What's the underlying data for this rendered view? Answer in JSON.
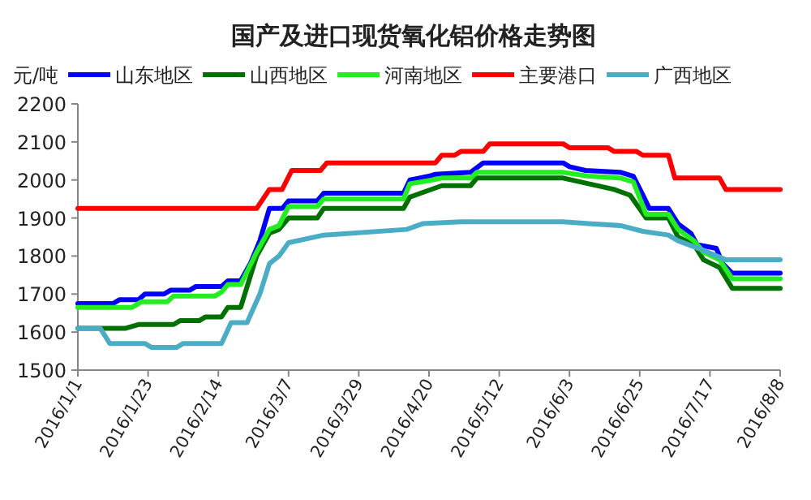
{
  "chart_data": {
    "type": "line",
    "title": "国产及进口现货氧化铝价格走势图",
    "ylabel": "元/吨",
    "legend": "top",
    "grid": false,
    "marker": "none",
    "line_style": "solid",
    "ylim": [
      1500,
      2200
    ],
    "yticks": [
      1500,
      1600,
      1700,
      1800,
      1900,
      2000,
      2100,
      2200
    ],
    "xlim": [
      "2016-01-01",
      "2016-08-08"
    ],
    "xticks": [
      {
        "value": "2016-01-01",
        "label": "2016/1/1"
      },
      {
        "value": "2016-01-23",
        "label": "2016/1/23"
      },
      {
        "value": "2016-02-14",
        "label": "2016/2/14"
      },
      {
        "value": "2016-03-07",
        "label": "2016/3/7"
      },
      {
        "value": "2016-03-29",
        "label": "2016/3/29"
      },
      {
        "value": "2016-04-20",
        "label": "2016/4/20"
      },
      {
        "value": "2016-05-12",
        "label": "2016/5/12"
      },
      {
        "value": "2016-06-03",
        "label": "2016/6/3"
      },
      {
        "value": "2016-06-25",
        "label": "2016/6/25"
      },
      {
        "value": "2016-07-17",
        "label": "2016/7/17"
      },
      {
        "value": "2016-08-08",
        "label": "2016/8/8"
      }
    ],
    "series": [
      {
        "name": "山东地区",
        "color": "#0000ff",
        "x": [
          "2016-01-01",
          "2016-01-12",
          "2016-01-14",
          "2016-01-20",
          "2016-01-22",
          "2016-01-28",
          "2016-01-30",
          "2016-02-05",
          "2016-02-07",
          "2016-02-15",
          "2016-02-17",
          "2016-02-21",
          "2016-02-24",
          "2016-02-27",
          "2016-03-01",
          "2016-03-05",
          "2016-03-07",
          "2016-03-16",
          "2016-03-18",
          "2016-04-12",
          "2016-04-14",
          "2016-04-20",
          "2016-04-22",
          "2016-05-03",
          "2016-05-07",
          "2016-06-01",
          "2016-06-03",
          "2016-06-08",
          "2016-06-19",
          "2016-06-23",
          "2016-06-26",
          "2016-06-28",
          "2016-07-04",
          "2016-07-07",
          "2016-07-11",
          "2016-07-13",
          "2016-07-19",
          "2016-07-21",
          "2016-07-24",
          "2016-08-08"
        ],
        "values": [
          1675,
          1675,
          1685,
          1685,
          1700,
          1700,
          1710,
          1710,
          1720,
          1720,
          1735,
          1735,
          1780,
          1840,
          1925,
          1925,
          1945,
          1945,
          1965,
          1965,
          2000,
          2010,
          2015,
          2020,
          2045,
          2045,
          2035,
          2025,
          2020,
          2010,
          1960,
          1925,
          1925,
          1885,
          1860,
          1830,
          1820,
          1780,
          1755,
          1755
        ]
      },
      {
        "name": "山西地区",
        "color": "#007000",
        "x": [
          "2016-01-01",
          "2016-01-16",
          "2016-01-20",
          "2016-01-31",
          "2016-02-02",
          "2016-02-08",
          "2016-02-10",
          "2016-02-15",
          "2016-02-17",
          "2016-02-21",
          "2016-02-26",
          "2016-03-01",
          "2016-03-04",
          "2016-03-07",
          "2016-03-16",
          "2016-03-18",
          "2016-04-12",
          "2016-04-14",
          "2016-04-19",
          "2016-04-24",
          "2016-05-03",
          "2016-05-05",
          "2016-06-01",
          "2016-06-09",
          "2016-06-17",
          "2016-06-22",
          "2016-06-27",
          "2016-07-04",
          "2016-07-07",
          "2016-07-12",
          "2016-07-15",
          "2016-07-20",
          "2016-07-24",
          "2016-08-08"
        ],
        "values": [
          1610,
          1610,
          1620,
          1620,
          1630,
          1630,
          1640,
          1640,
          1665,
          1665,
          1800,
          1860,
          1870,
          1900,
          1900,
          1925,
          1925,
          1955,
          1970,
          1985,
          1985,
          2005,
          2005,
          1990,
          1975,
          1960,
          1900,
          1900,
          1850,
          1830,
          1790,
          1770,
          1715,
          1715
        ]
      },
      {
        "name": "河南地区",
        "color": "#22ee22",
        "x": [
          "2016-01-01",
          "2016-01-18",
          "2016-01-21",
          "2016-01-29",
          "2016-01-31",
          "2016-02-13",
          "2016-02-15",
          "2016-02-17",
          "2016-02-21",
          "2016-02-26",
          "2016-03-01",
          "2016-03-04",
          "2016-03-07",
          "2016-03-16",
          "2016-03-18",
          "2016-04-12",
          "2016-04-14",
          "2016-04-21",
          "2016-04-24",
          "2016-05-03",
          "2016-05-05",
          "2016-06-01",
          "2016-06-09",
          "2016-06-19",
          "2016-06-23",
          "2016-06-27",
          "2016-07-04",
          "2016-07-07",
          "2016-07-12",
          "2016-07-15",
          "2016-07-20",
          "2016-07-24",
          "2016-08-08"
        ],
        "values": [
          1665,
          1665,
          1680,
          1680,
          1695,
          1695,
          1705,
          1725,
          1725,
          1810,
          1870,
          1880,
          1930,
          1930,
          1950,
          1950,
          1990,
          2000,
          2005,
          2005,
          2020,
          2020,
          2010,
          2005,
          1995,
          1910,
          1910,
          1870,
          1840,
          1810,
          1790,
          1740,
          1740
        ]
      },
      {
        "name": "主要港口",
        "color": "#ff0000",
        "x": [
          "2016-01-01",
          "2016-02-26",
          "2016-03-01",
          "2016-03-05",
          "2016-03-08",
          "2016-03-17",
          "2016-03-19",
          "2016-04-22",
          "2016-04-24",
          "2016-04-28",
          "2016-04-30",
          "2016-05-07",
          "2016-05-09",
          "2016-06-01",
          "2016-06-03",
          "2016-06-15",
          "2016-06-17",
          "2016-06-24",
          "2016-06-26",
          "2016-07-04",
          "2016-07-06",
          "2016-07-20",
          "2016-07-22",
          "2016-08-08"
        ],
        "values": [
          1925,
          1925,
          1975,
          1975,
          2025,
          2025,
          2045,
          2045,
          2065,
          2065,
          2075,
          2075,
          2095,
          2095,
          2085,
          2085,
          2075,
          2075,
          2065,
          2065,
          2005,
          2005,
          1975,
          1975
        ]
      },
      {
        "name": "广西地区",
        "color": "#4bacc6",
        "x": [
          "2016-01-01",
          "2016-01-08",
          "2016-01-11",
          "2016-01-22",
          "2016-01-24",
          "2016-02-01",
          "2016-02-03",
          "2016-02-15",
          "2016-02-18",
          "2016-02-23",
          "2016-02-27",
          "2016-03-01",
          "2016-03-04",
          "2016-03-07",
          "2016-03-18",
          "2016-04-13",
          "2016-04-18",
          "2016-04-30",
          "2016-06-01",
          "2016-06-09",
          "2016-06-19",
          "2016-06-26",
          "2016-07-04",
          "2016-07-07",
          "2016-07-15",
          "2016-07-22",
          "2016-08-08"
        ],
        "values": [
          1610,
          1610,
          1570,
          1570,
          1560,
          1560,
          1570,
          1570,
          1625,
          1625,
          1700,
          1780,
          1800,
          1835,
          1855,
          1870,
          1885,
          1890,
          1890,
          1885,
          1880,
          1865,
          1855,
          1840,
          1815,
          1790,
          1790
        ]
      }
    ]
  }
}
